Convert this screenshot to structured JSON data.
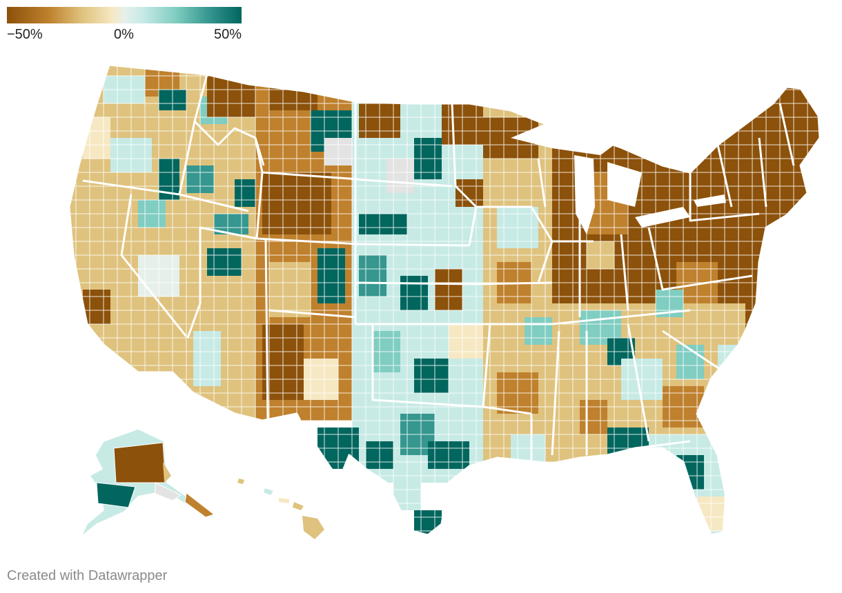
{
  "legend": {
    "min_label": "−50%",
    "mid_label": "0%",
    "max_label": "50%",
    "min_value": -50,
    "max_value": 50,
    "colors": [
      "#8c510a",
      "#bf812d",
      "#dfc27d",
      "#f6e8c3",
      "#e6f0ea",
      "#c7eae5",
      "#80cdc1",
      "#35978f",
      "#01665e"
    ]
  },
  "footer": {
    "credit": "Created with Datawrapper"
  },
  "colors": {
    "no_data": "#e3e3e3",
    "state_border": "#ffffff",
    "county_border": "#ffffff"
  }
}
